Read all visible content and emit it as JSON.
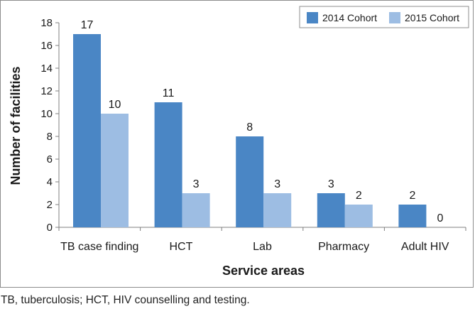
{
  "chart_data": {
    "type": "bar",
    "title": "",
    "xlabel": "Service areas",
    "ylabel": "Number of facilities",
    "categories": [
      "TB case finding",
      "HCT",
      "Lab",
      "Pharmacy",
      "Adult HIV"
    ],
    "series": [
      {
        "name": "2014 Cohort",
        "color": "#4a86c5",
        "values": [
          17,
          11,
          8,
          3,
          2
        ]
      },
      {
        "name": "2015 Cohort",
        "color": "#9dbde3",
        "values": [
          10,
          3,
          3,
          2,
          0
        ]
      }
    ],
    "ylim": [
      0,
      18
    ],
    "yticks": [
      0,
      2,
      4,
      6,
      8,
      10,
      12,
      14,
      16,
      18
    ],
    "grid": false,
    "legend": "top-right"
  },
  "caption": "TB, tuberculosis; HCT, HIV counselling and testing."
}
